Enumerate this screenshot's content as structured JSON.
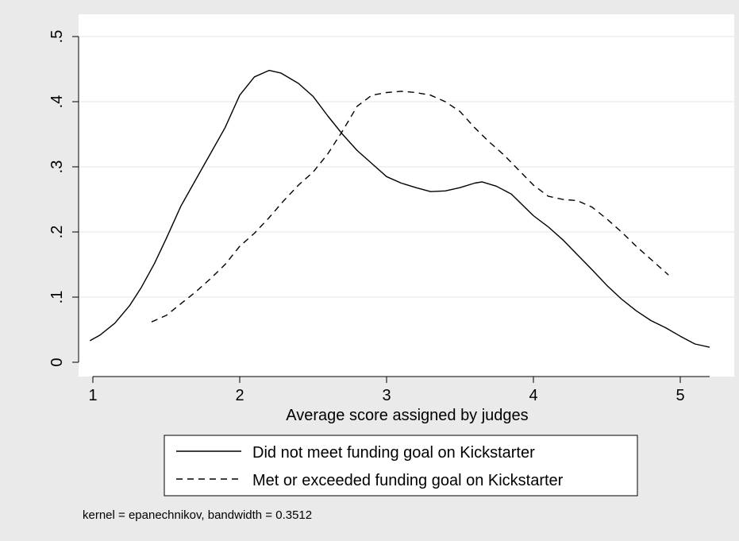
{
  "chart_data": {
    "type": "line",
    "title": "",
    "xlabel": "Average score assigned by judges",
    "ylabel": "",
    "xlim": [
      0.95,
      5.25
    ],
    "ylim": [
      0,
      0.5
    ],
    "xticks": [
      1,
      2,
      3,
      4,
      5
    ],
    "xtick_labels": [
      "1",
      "2",
      "3",
      "4",
      "5"
    ],
    "yticks": [
      0,
      0.1,
      0.2,
      0.3,
      0.4,
      0.5
    ],
    "ytick_labels": [
      "0",
      ".1",
      ".2",
      ".3",
      ".4",
      ".5"
    ],
    "grid": "horizontal",
    "legend_position": "bottom",
    "note": "kernel = epanechnikov, bandwidth = 0.3512",
    "series": [
      {
        "name": "Did not meet funding goal on Kickstarter",
        "style": "solid",
        "color": "#000000",
        "x": [
          0.98,
          1.05,
          1.15,
          1.25,
          1.33,
          1.42,
          1.5,
          1.6,
          1.7,
          1.8,
          1.9,
          2.0,
          2.1,
          2.2,
          2.28,
          2.4,
          2.5,
          2.6,
          2.7,
          2.8,
          2.9,
          3.0,
          3.1,
          3.2,
          3.3,
          3.4,
          3.5,
          3.6,
          3.65,
          3.75,
          3.85,
          4.0,
          4.1,
          4.2,
          4.3,
          4.4,
          4.5,
          4.6,
          4.7,
          4.8,
          4.9,
          5.0,
          5.1,
          5.2
        ],
        "y": [
          0.033,
          0.042,
          0.06,
          0.087,
          0.115,
          0.152,
          0.19,
          0.24,
          0.28,
          0.32,
          0.36,
          0.41,
          0.438,
          0.448,
          0.444,
          0.428,
          0.408,
          0.378,
          0.35,
          0.325,
          0.305,
          0.285,
          0.275,
          0.268,
          0.262,
          0.263,
          0.268,
          0.275,
          0.277,
          0.27,
          0.258,
          0.225,
          0.208,
          0.188,
          0.165,
          0.142,
          0.118,
          0.097,
          0.079,
          0.064,
          0.053,
          0.04,
          0.028,
          0.023
        ]
      },
      {
        "name": "Met or exceeded funding goal on Kickstarter",
        "style": "dashed",
        "color": "#000000",
        "x": [
          1.4,
          1.5,
          1.6,
          1.7,
          1.8,
          1.9,
          2.0,
          2.1,
          2.2,
          2.3,
          2.4,
          2.5,
          2.6,
          2.7,
          2.8,
          2.9,
          3.0,
          3.1,
          3.2,
          3.3,
          3.4,
          3.5,
          3.6,
          3.7,
          3.8,
          3.9,
          4.0,
          4.1,
          4.2,
          4.3,
          4.4,
          4.5,
          4.6,
          4.7,
          4.8,
          4.92
        ],
        "y": [
          0.062,
          0.072,
          0.09,
          0.108,
          0.128,
          0.15,
          0.178,
          0.198,
          0.222,
          0.248,
          0.272,
          0.292,
          0.32,
          0.355,
          0.393,
          0.41,
          0.414,
          0.416,
          0.414,
          0.41,
          0.4,
          0.385,
          0.36,
          0.338,
          0.318,
          0.295,
          0.272,
          0.255,
          0.25,
          0.248,
          0.238,
          0.22,
          0.2,
          0.178,
          0.158,
          0.134
        ]
      }
    ]
  }
}
